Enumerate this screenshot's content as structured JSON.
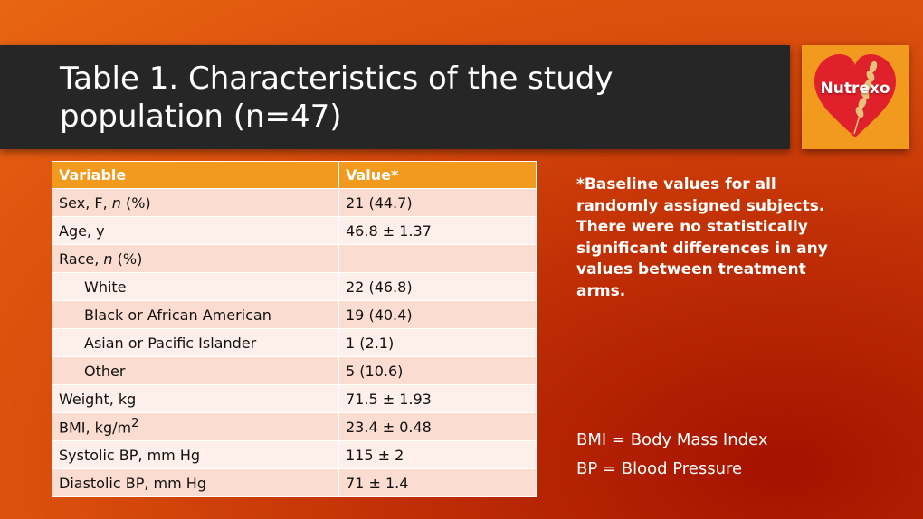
{
  "slide": {
    "title_line1": "Table 1. Characteristics of the study",
    "title_line2": "population (n=47)",
    "logo_text": "Nutrexo",
    "logo_colors": {
      "box": "#f29a1e",
      "heart": "#e0202a"
    },
    "background_colors": [
      "#e86612",
      "#a41200"
    ]
  },
  "table": {
    "headers": [
      "Variable",
      "Value*"
    ],
    "rows": [
      {
        "label": "Sex, F, ",
        "italic": "n",
        "suffix": " (%)",
        "value": "21 (44.7)",
        "indent": false
      },
      {
        "label": "Age, y",
        "value": "46.8 ± 1.37",
        "indent": false
      },
      {
        "label": "Race, ",
        "italic": "n",
        "suffix": " (%)",
        "value": "",
        "indent": false
      },
      {
        "label": "White",
        "value": "22 (46.8)",
        "indent": true
      },
      {
        "label": "Black or African American",
        "value": "19 (40.4)",
        "indent": true
      },
      {
        "label": "Asian or Pacific Islander",
        "value": "1 (2.1)",
        "indent": true
      },
      {
        "label": "Other",
        "value": "5 (10.6)",
        "indent": true
      },
      {
        "label": "Weight, kg",
        "value": "71.5 ± 1.93",
        "indent": false
      },
      {
        "label": "BMI, kg/m",
        "sup": "2",
        "value": "23.4 ± 0.48",
        "indent": false
      },
      {
        "label": "Systolic BP, mm Hg",
        "value": "115 ± 2",
        "indent": false
      },
      {
        "label": "Diastolic BP, mm Hg",
        "value": "71 ± 1.4",
        "indent": false
      }
    ]
  },
  "note": {
    "lines": [
      "*Baseline values for all",
      "randomly assigned subjects.",
      "There were no statistically",
      "significant differences in any",
      "values between treatment",
      "arms."
    ]
  },
  "abbreviations": [
    "BMI = Body Mass Index",
    "BP = Blood Pressure"
  ]
}
